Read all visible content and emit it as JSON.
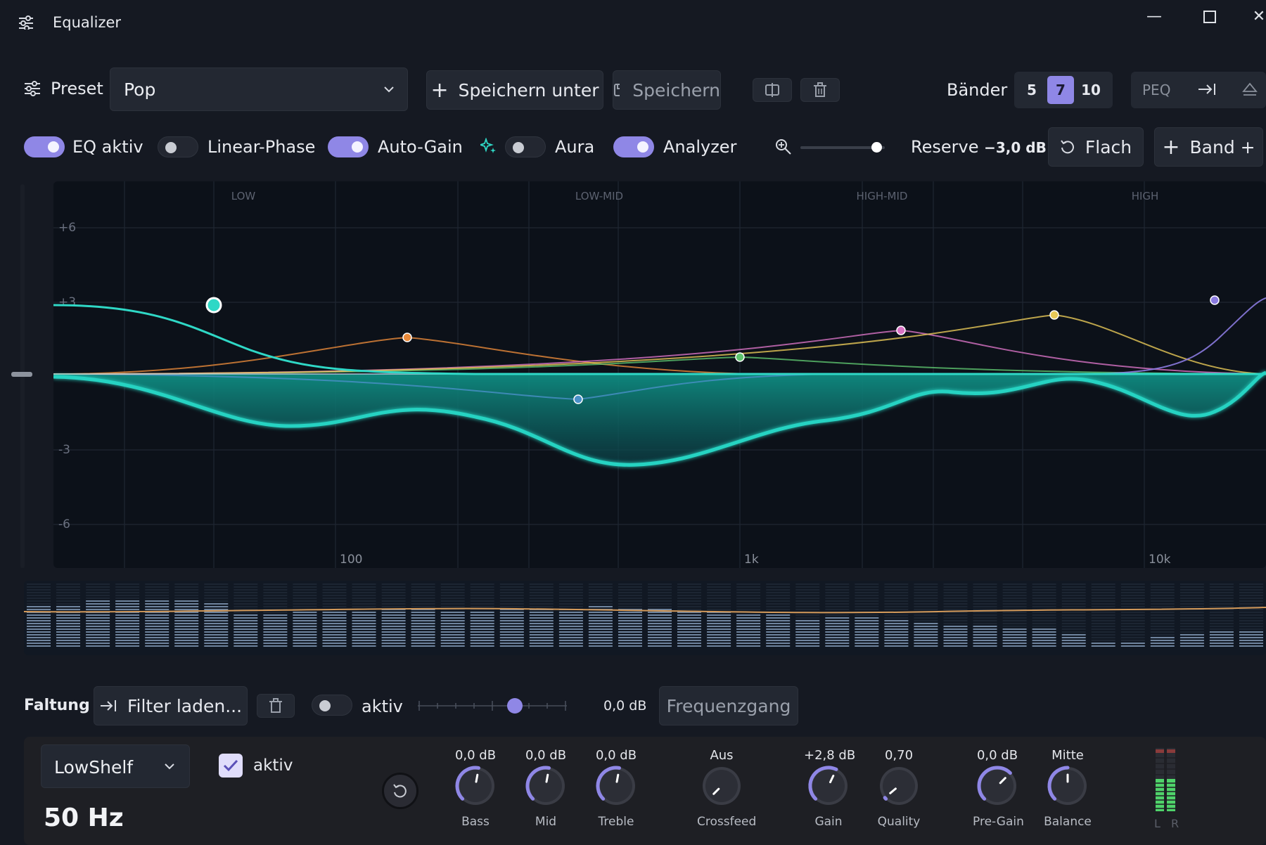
{
  "window": {
    "title": "Equalizer"
  },
  "toolbar": {
    "preset_label": "Preset",
    "preset_value": "Pop",
    "save_as_label": "Speichern unter",
    "save_label": "Speichern",
    "bands_label": "Bänder",
    "band_options": [
      "5",
      "7",
      "10"
    ],
    "band_selected": "7",
    "peq_label": "PEQ"
  },
  "options": {
    "eq_active": {
      "label": "EQ aktiv",
      "on": true
    },
    "linear_phase": {
      "label": "Linear-Phase",
      "on": false
    },
    "auto_gain": {
      "label": "Auto-Gain",
      "on": true
    },
    "aura": {
      "label": "Aura",
      "on": false
    },
    "analyzer": {
      "label": "Analyzer",
      "on": true
    },
    "reserve_label": "Reserve",
    "reserve_value": "−3,0 dB",
    "flat_label": "Flach",
    "add_band_label": "Band +",
    "zoom_level": 0.9
  },
  "graph": {
    "regions": [
      "LOW",
      "LOW-MID",
      "HIGH-MID",
      "HIGH"
    ],
    "y_ticks": [
      "+6",
      "+3",
      "-3",
      "-6"
    ],
    "x_ticks": [
      "100",
      "1k",
      "10k"
    ]
  },
  "convolution": {
    "label": "Faltung",
    "load_label": "Filter laden...",
    "active_label": "aktiv",
    "active_on": false,
    "gain_value": "0,0 dB",
    "response_label": "Frequenzgang",
    "slider_fraction": 0.65
  },
  "band_editor": {
    "type_value": "LowShelf",
    "active_label": "aktiv",
    "active_checked": true,
    "frequency": "50 Hz",
    "knobs": [
      {
        "value": "0,0 dB",
        "name": "Bass"
      },
      {
        "value": "0,0 dB",
        "name": "Mid"
      },
      {
        "value": "0,0 dB",
        "name": "Treble"
      },
      {
        "value": "Aus",
        "name": "Crossfeed"
      },
      {
        "value": "+2,8 dB",
        "name": "Gain"
      },
      {
        "value": "0,70",
        "name": "Quality"
      },
      {
        "value": "0,0 dB",
        "name": "Pre-Gain"
      },
      {
        "value": "Mitte",
        "name": "Balance"
      }
    ],
    "meter_left": "L",
    "meter_right": "R"
  },
  "colors": {
    "accent": "#8f87e6",
    "curve": "#26d3c2",
    "band1": "#2fd8c6",
    "band2": "#e8893a",
    "band3": "#4a90c8",
    "band4": "#5ec46e",
    "band5": "#d873c4",
    "band6": "#e8c957",
    "band7": "#8b7be0"
  }
}
